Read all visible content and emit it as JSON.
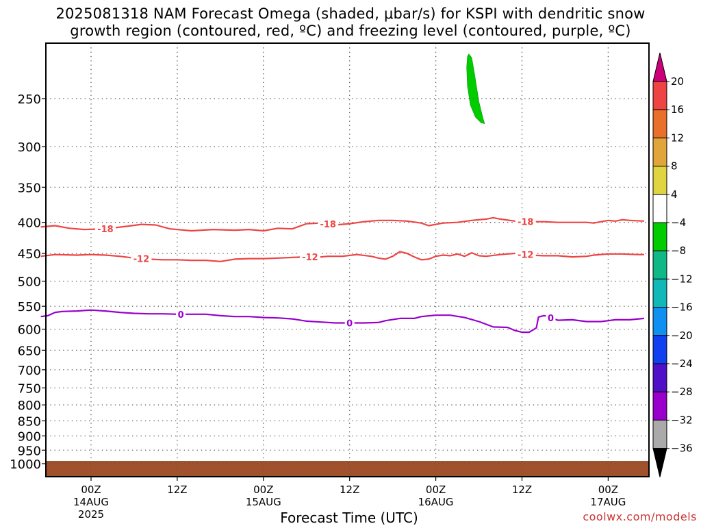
{
  "title": {
    "line1": "2025081318 NAM Forecast Omega (shaded, μbar/s) for KSPI with dendritic snow",
    "line2": "growth region (contoured, red, ºC) and freezing level (contoured, purple, ºC)"
  },
  "xlabel": "Forecast Time (UTC)",
  "credit": "coolwx.com/models",
  "colors": {
    "temperature_contour": "#ee4444",
    "freezing_contour": "#9900cc",
    "omega_patch": "#00cc00",
    "ground": "#a0522d",
    "grid": "#555555"
  },
  "chart_data": {
    "type": "contour",
    "title": "2025081318 NAM Forecast Omega (shaded, μbar/s) for KSPI with dendritic snow growth region (contoured, red, ºC) and freezing level (contoured, purple, ºC)",
    "xlabel": "Forecast Time (UTC)",
    "ylabel": "",
    "x_range_hours": [
      -7,
      77
    ],
    "y_levels": [
      250,
      300,
      350,
      400,
      450,
      500,
      550,
      600,
      650,
      700,
      750,
      800,
      850,
      900,
      950,
      1000
    ],
    "y_range_hPa": [
      200,
      1030
    ],
    "y_scale": "log",
    "grid": true,
    "x_ticks": [
      {
        "hour": 0,
        "lines": [
          "00Z",
          "14AUG",
          "2025"
        ]
      },
      {
        "hour": 12,
        "lines": [
          "12Z"
        ]
      },
      {
        "hour": 24,
        "lines": [
          "00Z",
          "15AUG"
        ]
      },
      {
        "hour": 36,
        "lines": [
          "12Z"
        ]
      },
      {
        "hour": 48,
        "lines": [
          "00Z",
          "16AUG"
        ]
      },
      {
        "hour": 60,
        "lines": [
          "12Z"
        ]
      },
      {
        "hour": 72,
        "lines": [
          "00Z",
          "17AUG"
        ]
      }
    ],
    "contours": [
      {
        "value": -18,
        "label": "-18",
        "color": "#ee4444",
        "points": [
          [
            -7,
            407
          ],
          [
            -5,
            405
          ],
          [
            -3,
            409
          ],
          [
            -1,
            411
          ],
          [
            2,
            410
          ],
          [
            5,
            406
          ],
          [
            7,
            403
          ],
          [
            9,
            404
          ],
          [
            11,
            410
          ],
          [
            14,
            413
          ],
          [
            17,
            411
          ],
          [
            20,
            412
          ],
          [
            22,
            411
          ],
          [
            24,
            413
          ],
          [
            26,
            409
          ],
          [
            28,
            410
          ],
          [
            30,
            402
          ],
          [
            32,
            401
          ],
          [
            34,
            404
          ],
          [
            36,
            402
          ],
          [
            38,
            399
          ],
          [
            40,
            397
          ],
          [
            42,
            397
          ],
          [
            44,
            398
          ],
          [
            46,
            401
          ],
          [
            47,
            405
          ],
          [
            49,
            401
          ],
          [
            51,
            400
          ],
          [
            53,
            397
          ],
          [
            55,
            395
          ],
          [
            56,
            393
          ],
          [
            57,
            395
          ],
          [
            59,
            398
          ],
          [
            61,
            399
          ],
          [
            63,
            399
          ],
          [
            65,
            400
          ],
          [
            67,
            400
          ],
          [
            69,
            400
          ],
          [
            70,
            401
          ],
          [
            71,
            399
          ],
          [
            72,
            397
          ],
          [
            73,
            398
          ],
          [
            74,
            396
          ],
          [
            75,
            397
          ],
          [
            77,
            398
          ]
        ],
        "label_hours": [
          2,
          33,
          60.5
        ]
      },
      {
        "value": -12,
        "label": "-12",
        "color": "#ee4444",
        "points": [
          [
            -7,
            455
          ],
          [
            -5,
            452
          ],
          [
            -2,
            453
          ],
          [
            0,
            452
          ],
          [
            2,
            453
          ],
          [
            4,
            455
          ],
          [
            6,
            458
          ],
          [
            8,
            460
          ],
          [
            10,
            461
          ],
          [
            12,
            461
          ],
          [
            14,
            462
          ],
          [
            16,
            462
          ],
          [
            18,
            464
          ],
          [
            20,
            460
          ],
          [
            22,
            459
          ],
          [
            24,
            459
          ],
          [
            26,
            458
          ],
          [
            28,
            457
          ],
          [
            30,
            456
          ],
          [
            32,
            456
          ],
          [
            33,
            455
          ],
          [
            35,
            455
          ],
          [
            37,
            452
          ],
          [
            39,
            455
          ],
          [
            40,
            458
          ],
          [
            41,
            460
          ],
          [
            42,
            455
          ],
          [
            43,
            447
          ],
          [
            44,
            450
          ],
          [
            45,
            456
          ],
          [
            46,
            461
          ],
          [
            47,
            460
          ],
          [
            48,
            455
          ],
          [
            49,
            453
          ],
          [
            50,
            454
          ],
          [
            51,
            451
          ],
          [
            52,
            455
          ],
          [
            53,
            449
          ],
          [
            54,
            454
          ],
          [
            55,
            455
          ],
          [
            57,
            452
          ],
          [
            58,
            451
          ],
          [
            59,
            450
          ],
          [
            60,
            450
          ],
          [
            61,
            453
          ],
          [
            63,
            454
          ],
          [
            65,
            454
          ],
          [
            67,
            456
          ],
          [
            69,
            455
          ],
          [
            70,
            453
          ],
          [
            72,
            451
          ],
          [
            74,
            451
          ],
          [
            76,
            452
          ],
          [
            77,
            452
          ]
        ],
        "label_hours": [
          7,
          30.5,
          60.5
        ]
      },
      {
        "value": 0,
        "label": "0",
        "color": "#9900cc",
        "points": [
          [
            -7,
            572
          ],
          [
            -6,
            570
          ],
          [
            -5,
            563
          ],
          [
            -4,
            561
          ],
          [
            -2,
            560
          ],
          [
            0,
            558
          ],
          [
            2,
            560
          ],
          [
            4,
            563
          ],
          [
            6,
            565
          ],
          [
            8,
            566
          ],
          [
            10,
            566
          ],
          [
            12,
            567
          ],
          [
            14,
            567
          ],
          [
            16,
            567
          ],
          [
            18,
            570
          ],
          [
            20,
            572
          ],
          [
            22,
            572
          ],
          [
            24,
            574
          ],
          [
            26,
            575
          ],
          [
            28,
            577
          ],
          [
            30,
            582
          ],
          [
            32,
            584
          ],
          [
            34,
            586
          ],
          [
            36,
            586
          ],
          [
            38,
            586
          ],
          [
            40,
            585
          ],
          [
            41,
            581
          ],
          [
            43,
            576
          ],
          [
            45,
            576
          ],
          [
            46,
            572
          ],
          [
            48,
            569
          ],
          [
            50,
            569
          ],
          [
            52,
            574
          ],
          [
            54,
            583
          ],
          [
            56,
            595
          ],
          [
            58,
            596
          ],
          [
            59,
            603
          ],
          [
            60,
            607
          ],
          [
            61,
            607
          ],
          [
            62,
            597
          ],
          [
            62.3,
            573
          ],
          [
            63,
            570
          ],
          [
            63.8,
            571
          ],
          [
            64,
            575
          ],
          [
            65,
            580
          ],
          [
            67,
            579
          ],
          [
            69,
            583
          ],
          [
            71,
            583
          ],
          [
            73,
            579
          ],
          [
            75,
            579
          ],
          [
            77,
            576
          ]
        ],
        "label_hours": [
          12.5,
          36,
          64
        ]
      }
    ],
    "shaded": [
      {
        "name": "omega",
        "value_range": [
          -8,
          -4
        ],
        "color": "#00cc00",
        "outline": [
          [
            52.6,
            211
          ],
          [
            53.0,
            214
          ],
          [
            53.4,
            228
          ],
          [
            54.0,
            253
          ],
          [
            54.6,
            270
          ],
          [
            54.8,
            275
          ],
          [
            54.3,
            274
          ],
          [
            53.5,
            268
          ],
          [
            52.8,
            256
          ],
          [
            52.4,
            238
          ],
          [
            52.3,
            222
          ],
          [
            52.4,
            213
          ]
        ]
      }
    ],
    "colorbar": {
      "labels": [
        "20",
        "16",
        "12",
        "8",
        "4",
        "−4",
        "−8",
        "−12",
        "−16",
        "−20",
        "−24",
        "−28",
        "−32",
        "−36"
      ],
      "colors": [
        "#cc0077",
        "#ee4444",
        "#e8702a",
        "#e0a63c",
        "#e0d440",
        "#ffffff",
        "#00cc00",
        "#10b888",
        "#10b8b8",
        "#1090f0",
        "#1040f0",
        "#5010c8",
        "#9900cc",
        "#aaaaaa",
        "#000000"
      ]
    }
  }
}
